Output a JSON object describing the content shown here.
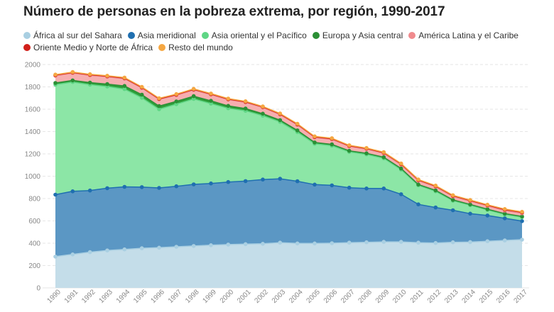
{
  "chart_data": {
    "type": "area",
    "stacked": true,
    "title": "Número de personas en la pobreza extrema, por región, 1990-2017",
    "x": [
      "1990",
      "1991",
      "1992",
      "1993",
      "1994",
      "1995",
      "1996",
      "1997",
      "1998",
      "1999",
      "2000",
      "2001",
      "2002",
      "2003",
      "2004",
      "2005",
      "2006",
      "2007",
      "2008",
      "2009",
      "2010",
      "2011",
      "2012",
      "2013",
      "2014",
      "2015",
      "2016",
      "2017"
    ],
    "ylim": [
      0,
      2000
    ],
    "yticks": [
      "0",
      "200",
      "400",
      "600",
      "800",
      "1000",
      "1200",
      "1400",
      "1600",
      "1800",
      "2000"
    ],
    "grid": true,
    "legend_position": "top",
    "series": [
      {
        "name": "África al sur del Sahara",
        "color": "#c4dde9",
        "line": "#a9cfe2",
        "values": [
          280,
          300,
          320,
          335,
          345,
          355,
          360,
          368,
          375,
          382,
          388,
          392,
          395,
          405,
          398,
          398,
          400,
          405,
          408,
          412,
          412,
          405,
          402,
          408,
          410,
          418,
          425,
          432
        ]
      },
      {
        "name": "Asia meridional",
        "color": "#5b97c4",
        "line": "#1f6fb0",
        "values": [
          555,
          565,
          552,
          558,
          560,
          547,
          535,
          542,
          552,
          553,
          560,
          564,
          575,
          572,
          557,
          527,
          518,
          492,
          482,
          478,
          427,
          343,
          318,
          287,
          255,
          230,
          198,
          166
        ]
      },
      {
        "name": "Asia oriental y el Pacífico",
        "color": "#8ce6a6",
        "line": "#5fd685",
        "values": [
          985,
          978,
          948,
          910,
          875,
          800,
          705,
          735,
          765,
          715,
          660,
          630,
          572,
          510,
          440,
          365,
          355,
          320,
          305,
          270,
          220,
          170,
          145,
          85,
          75,
          50,
          35,
          35
        ]
      },
      {
        "name": "Europa y Asia central",
        "color": "#2e9e3a",
        "line": "#2b8f35",
        "values": [
          15,
          15,
          18,
          22,
          28,
          28,
          28,
          25,
          25,
          25,
          22,
          20,
          18,
          15,
          15,
          12,
          12,
          10,
          10,
          10,
          10,
          8,
          8,
          8,
          7,
          7,
          7,
          7
        ]
      },
      {
        "name": "América Latina y el Caribe",
        "color": "#f6aeb0",
        "line": "#f08a8d",
        "values": [
          65,
          65,
          65,
          65,
          65,
          60,
          60,
          55,
          55,
          55,
          55,
          55,
          55,
          50,
          50,
          45,
          45,
          40,
          38,
          35,
          35,
          35,
          33,
          32,
          30,
          30,
          28,
          28
        ]
      },
      {
        "name": "Oriente Medio y Norte de África",
        "color": "#e0302a",
        "line": "#d1201a",
        "values": [
          5,
          5,
          5,
          5,
          5,
          5,
          5,
          5,
          5,
          5,
          5,
          5,
          5,
          5,
          5,
          5,
          5,
          5,
          5,
          5,
          5,
          5,
          5,
          5,
          5,
          5,
          8,
          8
        ]
      },
      {
        "name": "Resto del mundo",
        "color": "#f7be7a",
        "line": "#f5a742",
        "values": [
          5,
          5,
          5,
          5,
          5,
          5,
          5,
          5,
          5,
          5,
          5,
          5,
          5,
          5,
          5,
          5,
          5,
          5,
          5,
          5,
          5,
          5,
          5,
          5,
          5,
          5,
          5,
          5
        ]
      }
    ]
  }
}
